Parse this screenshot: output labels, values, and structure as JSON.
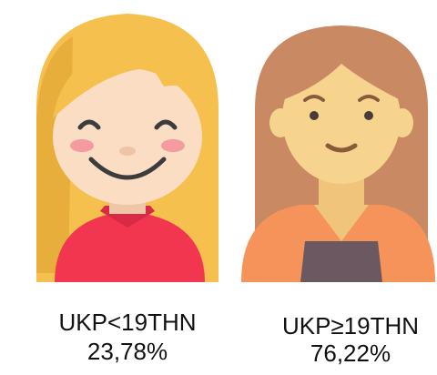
{
  "items": [
    {
      "label": "UKP<19THN",
      "value": "23,78%"
    },
    {
      "label": "UKP≥19THN",
      "value": "76,22%"
    }
  ]
}
